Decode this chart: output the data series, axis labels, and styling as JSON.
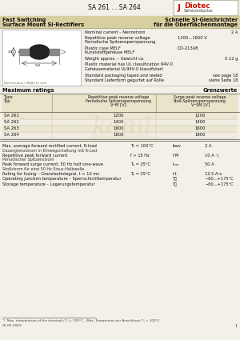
{
  "title": "SA 261 ... SA 264",
  "company": "Diotec",
  "company_sub": "Semiconductor",
  "header_left1": "Fast Switching",
  "header_left2": "Surface Mount Si-Rectifiers",
  "header_right1": "Schnelle Si-Gleichrichter",
  "header_right2": "für die Oberflächenmontage",
  "specs": [
    [
      "Nominal current – Nennstrom",
      "",
      "2 A"
    ],
    [
      "Repetitive peak reverse voltage",
      "1200…1800 V",
      ""
    ],
    [
      "Periodische Spitzensperrspannung",
      "",
      ""
    ],
    [
      "Plastic case MELF",
      "DO-213AB",
      ""
    ],
    [
      "Kunststoffgehäuse MELF",
      "",
      ""
    ],
    [
      "Weight approx. – Gewicht ca.",
      "",
      "0.12 g"
    ],
    [
      "Plastic material has UL classification 94V-0",
      "",
      ""
    ],
    [
      "Gehäusematerial UL94V-0 klassifiziert",
      "",
      ""
    ],
    [
      "Standard packaging taped and reeled",
      "",
      "see page 18"
    ],
    [
      "Standard Lieferform gegurtet auf Rolle",
      "",
      "siehe Seite 18"
    ]
  ],
  "table_data": [
    [
      "SA 261",
      "1200",
      "1200"
    ],
    [
      "SA 262",
      "1400",
      "1400"
    ],
    [
      "SA 263",
      "1600",
      "1600"
    ],
    [
      "SA 264",
      "1800",
      "1800"
    ]
  ],
  "ratings": [
    [
      "Max. average forward rectified current, R-load",
      "T₁ = 100°C",
      "Iᴎav",
      "2 A",
      true
    ],
    [
      "Dauergrenzstrom in Einwegschaltung mit R-Last",
      "",
      "",
      "",
      false
    ],
    [
      "Repetitive peak forward current",
      "f > 15 Hz",
      "IᴼM",
      "10 A ¹)",
      true
    ],
    [
      "Periodischer Spitzenstrom",
      "",
      "",
      "",
      false
    ],
    [
      "Peak forward surge current, 50 Hz half sine-wave",
      "Tₐ = 25°C",
      "Iₘₐᵥ",
      "50 A",
      true
    ],
    [
      "Stoßstrom für eine 50 Hz Sinus-Halbwelle",
      "",
      "",
      "",
      false
    ],
    [
      "Rating for fusing – Grenzlastintegral, t < 10 ms",
      "Tₐ = 25°C",
      "i²t",
      "12.5 A²s",
      true
    ],
    [
      "Operating junction temperature – Sperrschichttemperatur",
      "",
      "Tⰼ",
      "−50...+175°C",
      true
    ],
    [
      "Storage temperature – Lagerungstemperatur",
      "",
      "Tⰼ",
      "−50...+175°C",
      true
    ]
  ],
  "footnote": "¹)  Max. temperature of the terminals Tₐ = 100°C – Max. Temperatur der Anschlüsse Tₐ = 100°C",
  "date": "05.06.2003",
  "page": "1",
  "bg_color": "#f2f0e8",
  "header_bg": "#d8cfa0",
  "table_bg1": "#e8dfc0",
  "table_bg2": "#f0ebe0",
  "watermark_color": "#c8a050"
}
